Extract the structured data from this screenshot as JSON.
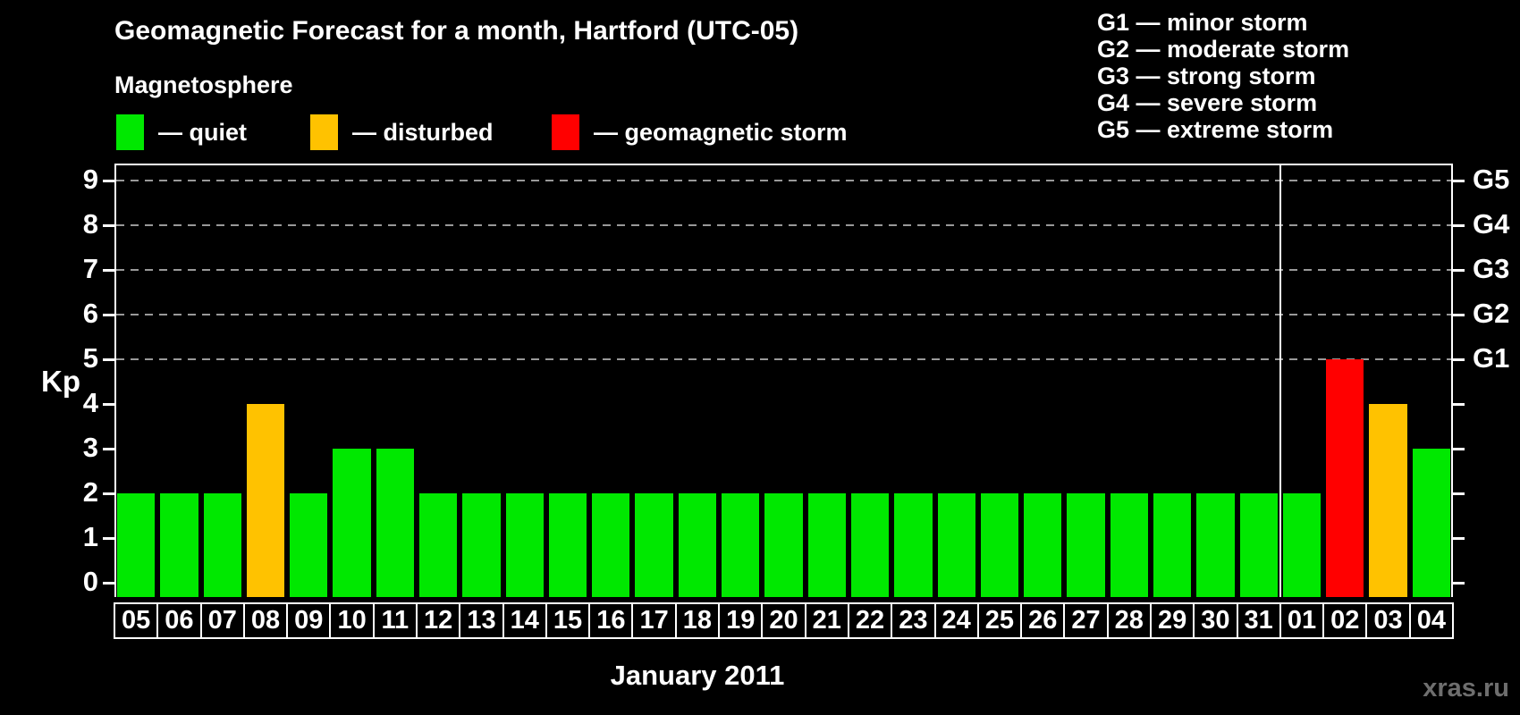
{
  "title": "Geomagnetic Forecast for a month, Hartford (UTC-05)",
  "subtitle": "Magnetosphere",
  "legend": [
    {
      "label": "— quiet",
      "status": "quiet",
      "color": "#00e800"
    },
    {
      "label": "— disturbed",
      "status": "disturbed",
      "color": "#ffc200"
    },
    {
      "label": "— geomagnetic storm",
      "status": "storm",
      "color": "#ff0000"
    }
  ],
  "g_legend": [
    "G1 — minor storm",
    "G2 — moderate storm",
    "G3 — strong storm",
    "G4 — severe storm",
    "G5 — extreme storm"
  ],
  "watermark": "xras.ru",
  "chart_data": {
    "type": "bar",
    "title": "Geomagnetic Forecast for a month, Hartford (UTC-05)",
    "xlabel": "January 2011",
    "ylabel": "Kp",
    "ylim": [
      0,
      9
    ],
    "yticks": [
      0,
      1,
      2,
      3,
      4,
      5,
      6,
      7,
      8,
      9
    ],
    "gridlines_at": [
      5,
      6,
      7,
      8,
      9
    ],
    "grid": "dashed horizontal at storm levels only",
    "right_axis_labels": [
      {
        "value": 5,
        "label": "G1"
      },
      {
        "value": 6,
        "label": "G2"
      },
      {
        "value": 7,
        "label": "G3"
      },
      {
        "value": 8,
        "label": "G4"
      },
      {
        "value": 9,
        "label": "G5"
      }
    ],
    "categories": [
      "05",
      "06",
      "07",
      "08",
      "09",
      "10",
      "11",
      "12",
      "13",
      "14",
      "15",
      "16",
      "17",
      "18",
      "19",
      "20",
      "21",
      "22",
      "23",
      "24",
      "25",
      "26",
      "27",
      "28",
      "29",
      "30",
      "31",
      "01",
      "02",
      "03",
      "04"
    ],
    "values": [
      2,
      2,
      2,
      4,
      2,
      3,
      3,
      2,
      2,
      2,
      2,
      2,
      2,
      2,
      2,
      2,
      2,
      2,
      2,
      2,
      2,
      2,
      2,
      2,
      2,
      2,
      2,
      2,
      5,
      4,
      3
    ],
    "statuses": [
      "quiet",
      "quiet",
      "quiet",
      "disturbed",
      "quiet",
      "quiet",
      "quiet",
      "quiet",
      "quiet",
      "quiet",
      "quiet",
      "quiet",
      "quiet",
      "quiet",
      "quiet",
      "quiet",
      "quiet",
      "quiet",
      "quiet",
      "quiet",
      "quiet",
      "quiet",
      "quiet",
      "quiet",
      "quiet",
      "quiet",
      "quiet",
      "quiet",
      "storm",
      "disturbed",
      "quiet"
    ],
    "month_separator_after_index": 26,
    "status_colors": {
      "quiet": "#00e800",
      "disturbed": "#ffc200",
      "storm": "#ff0000"
    },
    "gridline_color": "#999999",
    "legend_position": "top-left",
    "background_color": "#000000"
  }
}
